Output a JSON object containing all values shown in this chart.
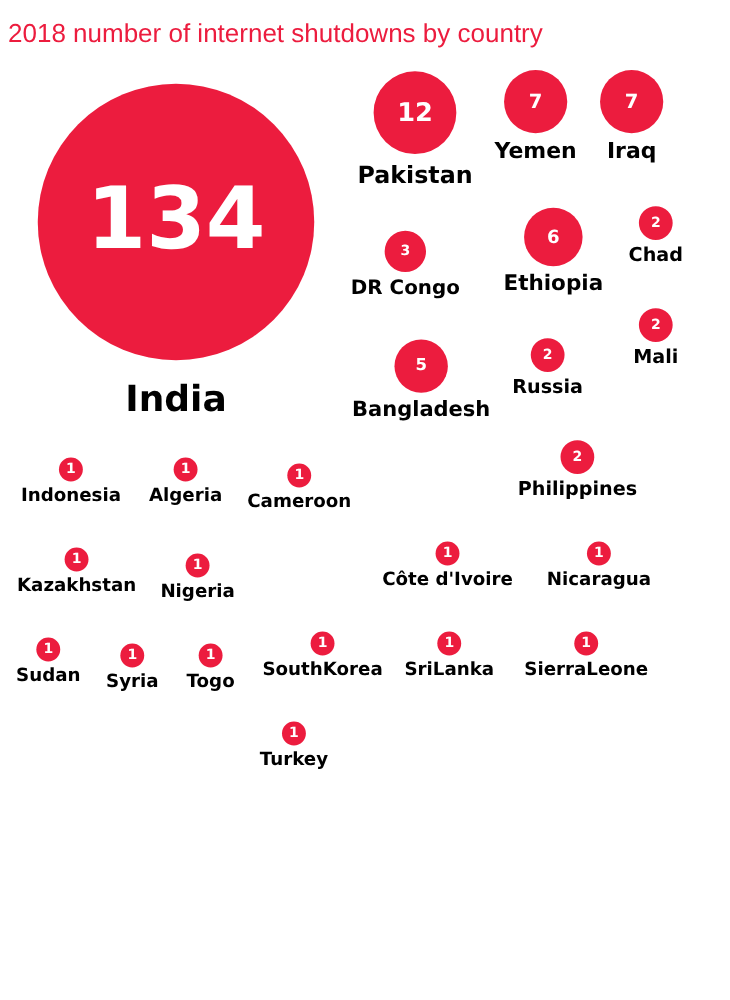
{
  "chart_data": {
    "type": "other",
    "data_labels": true,
    "title": "2018 number of internet shutdowns by country",
    "color": "#ec1c3e",
    "categories": [
      "India",
      "Pakistan",
      "Yemen",
      "Iraq",
      "Ethiopia",
      "Bangladesh",
      "DR Congo",
      "Chad",
      "Mali",
      "Russia",
      "Philippines",
      "Indonesia",
      "Algeria",
      "Cameroon",
      "Côte d'Ivoire",
      "Nicaragua",
      "Kazakhstan",
      "Nigeria",
      "SouthKorea",
      "SriLanka",
      "SierraLeone",
      "Sudan",
      "Syria",
      "Togo",
      "Turkey"
    ],
    "values": [
      134,
      12,
      7,
      7,
      6,
      5,
      3,
      2,
      2,
      2,
      2,
      1,
      1,
      1,
      1,
      1,
      1,
      1,
      1,
      1,
      1,
      1,
      1,
      1,
      1
    ]
  }
}
